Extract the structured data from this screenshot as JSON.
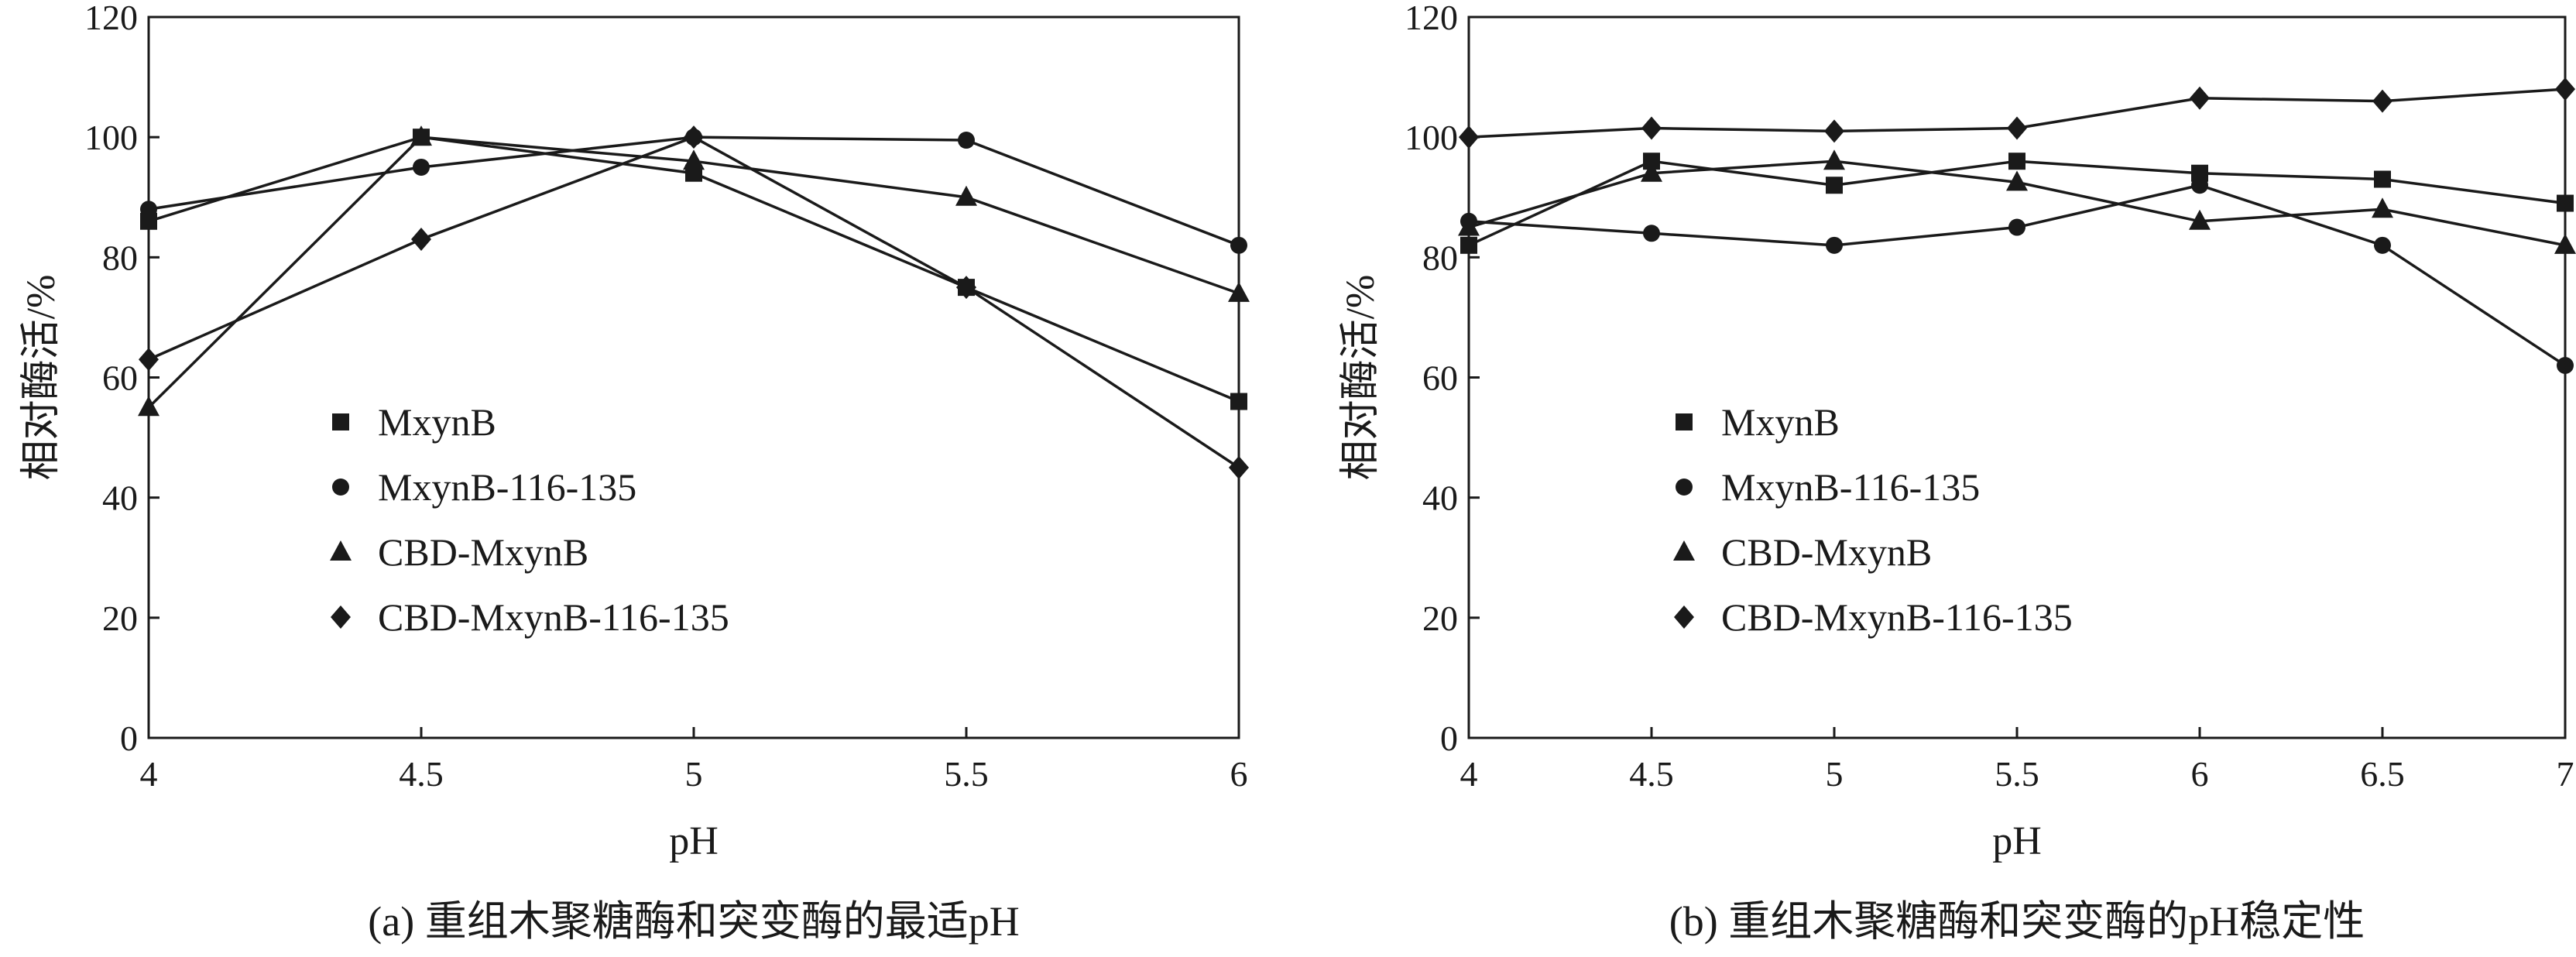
{
  "chart_data": [
    {
      "type": "line",
      "caption": "(a) 重组木聚糖酶和突变酶的最适pH",
      "xlabel": "pH",
      "ylabel": "相对酶活/%",
      "x": [
        4,
        4.5,
        5,
        5.5,
        6
      ],
      "x_ticks": [
        "4",
        "4.5",
        "5",
        "5.5",
        "6"
      ],
      "xlim": [
        4,
        6
      ],
      "ylim": [
        0,
        120
      ],
      "y_ticks": [
        "0",
        "20",
        "40",
        "60",
        "80",
        "100",
        "120"
      ],
      "grid": false,
      "legend_position": "center-left",
      "series": [
        {
          "name": "MxynB",
          "marker": "square",
          "values": [
            86,
            100,
            94,
            75,
            56
          ]
        },
        {
          "name": "MxynB-116-135",
          "marker": "circle",
          "values": [
            88,
            95,
            100,
            99.5,
            82
          ]
        },
        {
          "name": "CBD-MxynB",
          "marker": "triangle",
          "values": [
            55,
            100,
            96,
            90,
            74
          ]
        },
        {
          "name": "CBD-MxynB-116-135",
          "marker": "diamond",
          "values": [
            63,
            83,
            100,
            75,
            45
          ]
        }
      ]
    },
    {
      "type": "line",
      "caption": "(b) 重组木聚糖酶和突变酶的pH稳定性",
      "xlabel": "pH",
      "ylabel": "相对酶活/%",
      "x": [
        4,
        4.5,
        5,
        5.5,
        6,
        6.5,
        7
      ],
      "x_ticks": [
        "4",
        "4.5",
        "5",
        "5.5",
        "6",
        "6.5",
        "7"
      ],
      "xlim": [
        4,
        7
      ],
      "ylim": [
        0,
        120
      ],
      "y_ticks": [
        "0",
        "20",
        "40",
        "60",
        "80",
        "100",
        "120"
      ],
      "grid": false,
      "legend_position": "center-left",
      "series": [
        {
          "name": "MxynB",
          "marker": "square",
          "values": [
            82,
            96,
            92,
            96,
            94,
            93,
            89
          ]
        },
        {
          "name": "MxynB-116-135",
          "marker": "circle",
          "values": [
            86,
            84,
            82,
            85,
            92,
            82,
            62
          ]
        },
        {
          "name": "CBD-MxynB",
          "marker": "triangle",
          "values": [
            85,
            94,
            96,
            92.5,
            86,
            88,
            82
          ]
        },
        {
          "name": "CBD-MxynB-116-135",
          "marker": "diamond",
          "values": [
            100,
            101.5,
            101,
            101.5,
            106.5,
            106,
            108
          ]
        }
      ]
    }
  ]
}
